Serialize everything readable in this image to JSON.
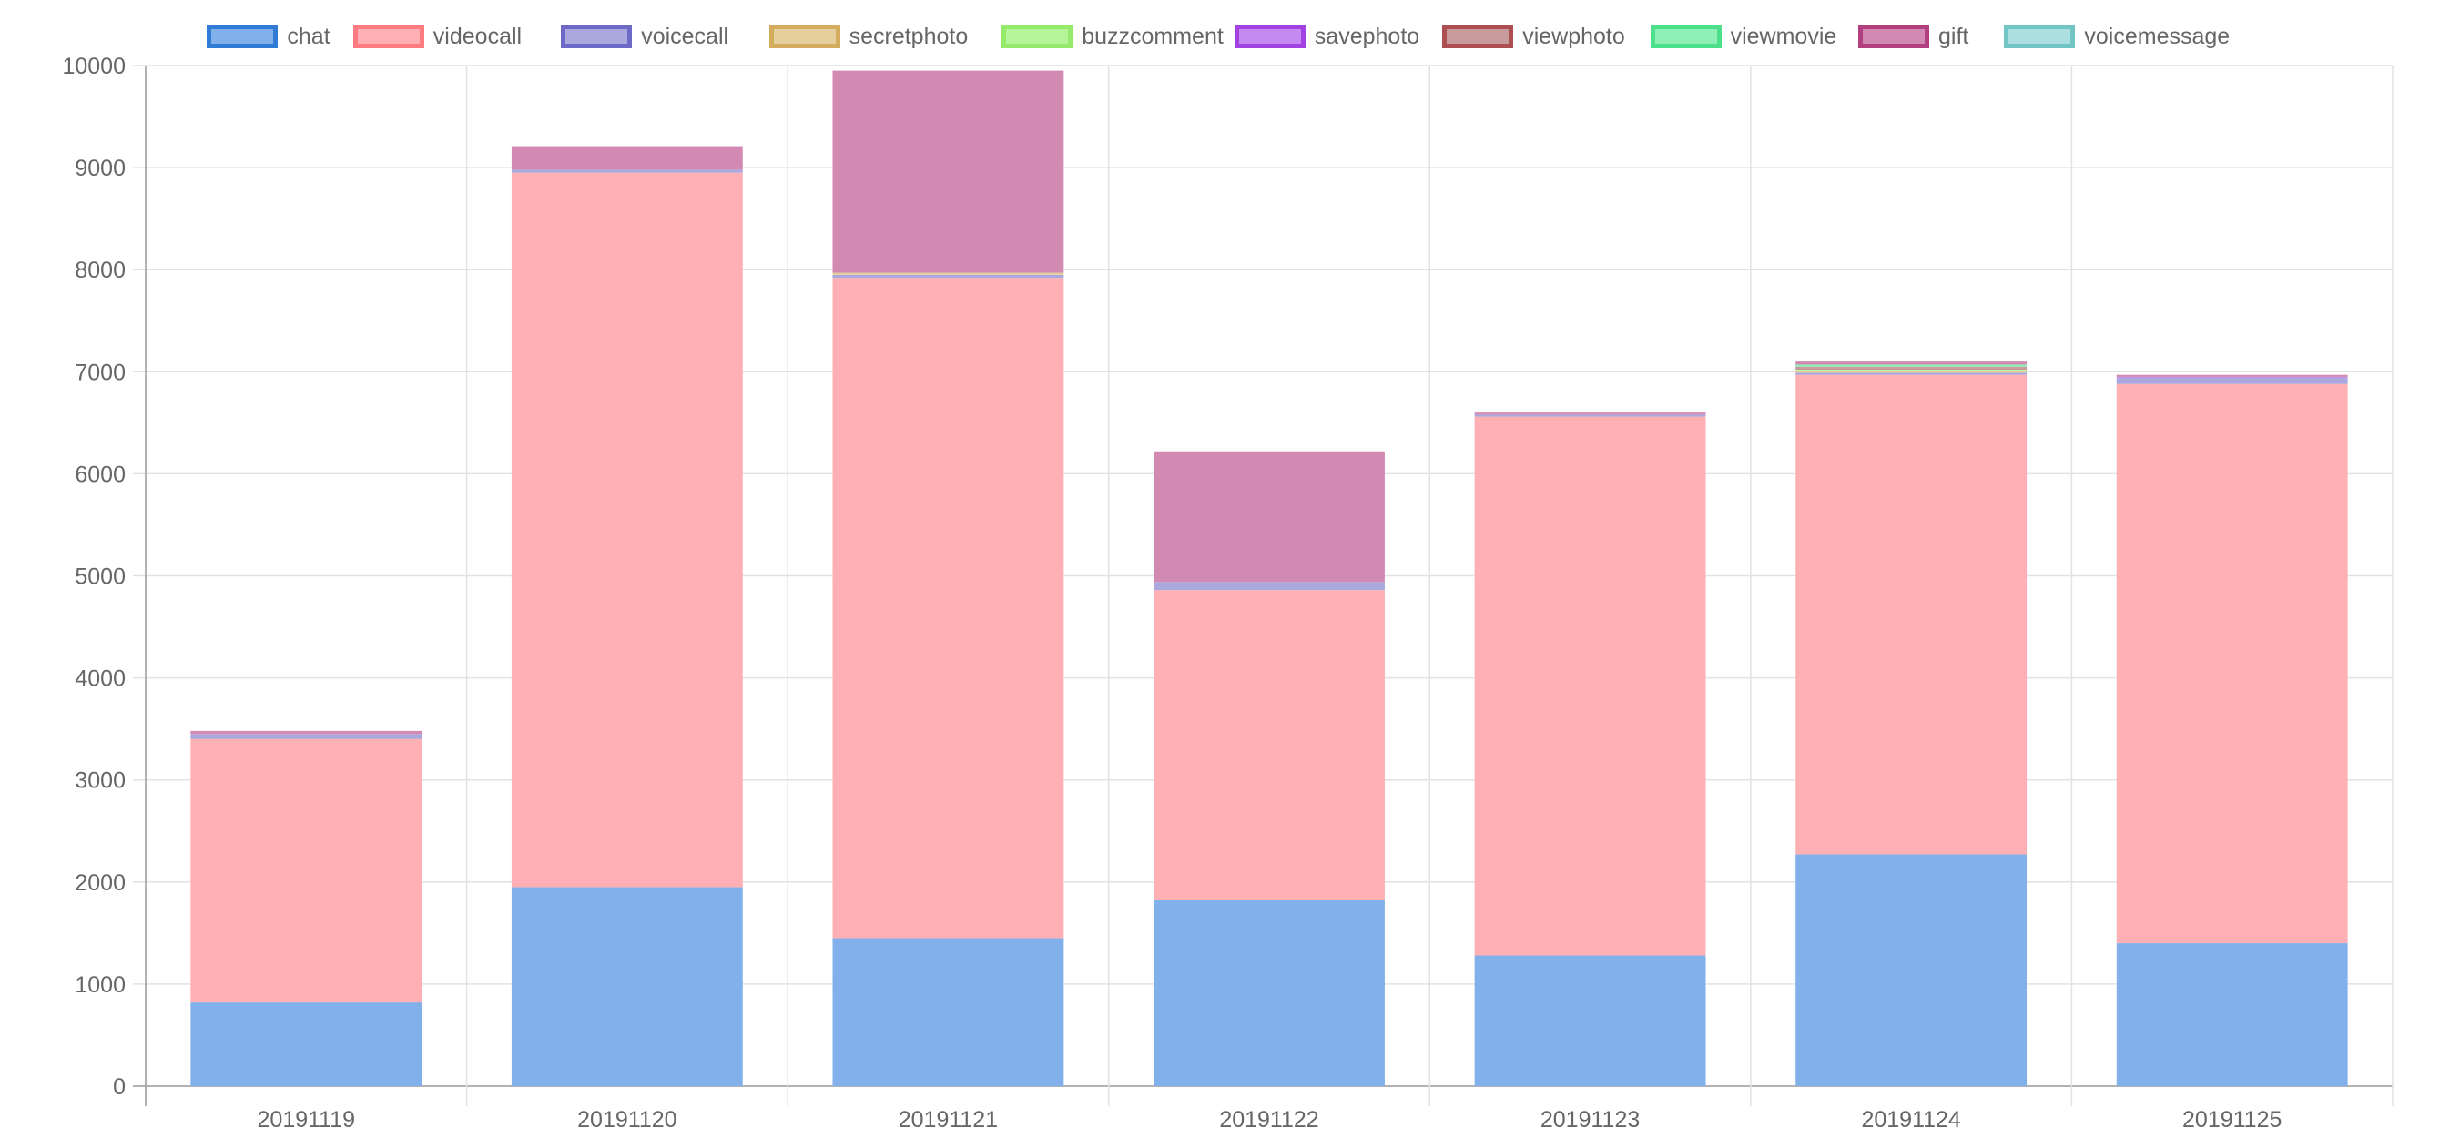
{
  "chart_data": {
    "type": "bar",
    "stacked": true,
    "categories": [
      "20191119",
      "20191120",
      "20191121",
      "20191122",
      "20191123",
      "20191124",
      "20191125"
    ],
    "ylim": [
      0,
      10000
    ],
    "yticks": [
      0,
      1000,
      2000,
      3000,
      4000,
      5000,
      6000,
      7000,
      8000,
      9000,
      10000
    ],
    "grid": true,
    "legend_position": "top",
    "series": [
      {
        "name": "chat",
        "fill": "#82b0ea",
        "border": "#2f7bd6",
        "values": [
          820,
          1950,
          1450,
          1820,
          1280,
          2270,
          1400
        ]
      },
      {
        "name": "videocall",
        "fill": "#ffb0b4",
        "border": "#ff7b82",
        "values": [
          2580,
          7000,
          6470,
          3040,
          5280,
          4700,
          5480
        ]
      },
      {
        "name": "voicecall",
        "fill": "#aaa8dc",
        "border": "#6d6ac7",
        "values": [
          50,
          30,
          30,
          80,
          20,
          20,
          60
        ]
      },
      {
        "name": "secretphoto",
        "fill": "#e4cf9d",
        "border": "#d4ac5d",
        "values": [
          0,
          0,
          20,
          0,
          0,
          20,
          0
        ]
      },
      {
        "name": "buzzcomment",
        "fill": "#b5f59a",
        "border": "#96ea6b",
        "values": [
          0,
          0,
          0,
          0,
          0,
          10,
          0
        ]
      },
      {
        "name": "savephoto",
        "fill": "#c48af2",
        "border": "#a242e3",
        "values": [
          0,
          0,
          0,
          0,
          0,
          0,
          10
        ]
      },
      {
        "name": "viewphoto",
        "fill": "#c89b9d",
        "border": "#ad4e52",
        "values": [
          0,
          0,
          0,
          0,
          0,
          30,
          0
        ]
      },
      {
        "name": "viewmovie",
        "fill": "#8ff0b7",
        "border": "#4ce08b",
        "values": [
          0,
          0,
          0,
          0,
          0,
          20,
          0
        ]
      },
      {
        "name": "gift",
        "fill": "#d38ab2",
        "border": "#b23f7f",
        "values": [
          30,
          230,
          1980,
          1280,
          20,
          30,
          20
        ]
      },
      {
        "name": "voicemessage",
        "fill": "#ace0e0",
        "border": "#72c5c5",
        "values": [
          0,
          0,
          0,
          0,
          0,
          10,
          0
        ]
      }
    ]
  }
}
